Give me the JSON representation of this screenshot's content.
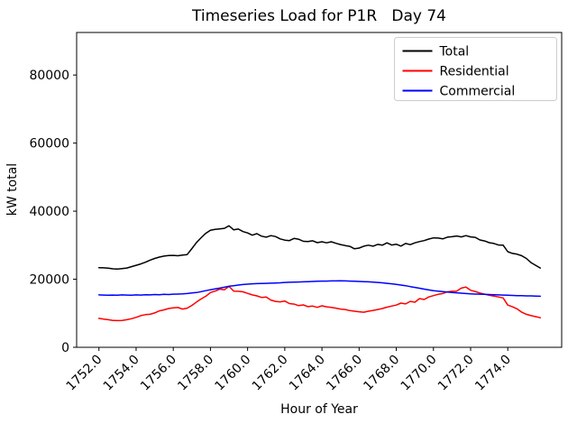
{
  "window": {
    "background": "#ffffff"
  },
  "chart_data": {
    "type": "line",
    "title": "Timeseries Load for P1R   Day 74",
    "xlabel": "Hour of Year",
    "ylabel": "kW total",
    "xlim": [
      1750.8,
      1776.9
    ],
    "ylim": [
      0,
      92500
    ],
    "grid": false,
    "legend_position": "upper right",
    "x_ticks": [
      1752,
      1754,
      1756,
      1758,
      1760,
      1762,
      1764,
      1766,
      1768,
      1770,
      1772,
      1774
    ],
    "x_tick_labels": [
      "1752.0",
      "1754.0",
      "1756.0",
      "1758.0",
      "1760.0",
      "1762.0",
      "1764.0",
      "1766.0",
      "1768.0",
      "1770.0",
      "1772.0",
      "1774.0"
    ],
    "x_tick_rotation_deg": 45,
    "y_ticks": [
      0,
      20000,
      40000,
      60000,
      80000
    ],
    "y_tick_labels": [
      "0",
      "20000",
      "40000",
      "60000",
      "80000"
    ],
    "x_start": 1752.0,
    "x_step": 0.25,
    "x_unit": "hour of year (15-min samples)",
    "series": [
      {
        "name": "Total",
        "color": "#000000",
        "values": [
          23400,
          23350,
          23250,
          23050,
          23000,
          23150,
          23300,
          23700,
          24100,
          24500,
          25000,
          25600,
          26100,
          26500,
          26800,
          26950,
          27000,
          26900,
          27100,
          27250,
          29000,
          30800,
          32200,
          33500,
          34400,
          34650,
          34800,
          34950,
          35700,
          34500,
          34750,
          34000,
          33600,
          32950,
          33400,
          32650,
          32350,
          32800,
          32550,
          31850,
          31500,
          31350,
          32000,
          31750,
          31150,
          31050,
          31300,
          30750,
          31000,
          30700,
          31000,
          30550,
          30200,
          29900,
          29650,
          28950,
          29150,
          29700,
          30000,
          29700,
          30250,
          30000,
          30700,
          30050,
          30300,
          29750,
          30500,
          30150,
          30700,
          31050,
          31350,
          31800,
          32150,
          32100,
          31850,
          32350,
          32500,
          32700,
          32450,
          32800,
          32450,
          32300,
          31550,
          31250,
          30750,
          30500,
          30050,
          30000,
          28100,
          27600,
          27350,
          26900,
          26100,
          24900,
          24100,
          23300
        ]
      },
      {
        "name": "Residential",
        "color": "#ff0000",
        "values": [
          8500,
          8300,
          8100,
          7900,
          7850,
          7900,
          8100,
          8400,
          8800,
          9300,
          9600,
          9700,
          10100,
          10700,
          11000,
          11400,
          11600,
          11700,
          11250,
          11500,
          12300,
          13300,
          14200,
          15000,
          16100,
          16500,
          17100,
          16900,
          17900,
          16500,
          16450,
          16300,
          15850,
          15400,
          15100,
          14650,
          14800,
          13900,
          13500,
          13350,
          13600,
          12850,
          12700,
          12250,
          12450,
          11950,
          12100,
          11750,
          12200,
          11900,
          11750,
          11500,
          11250,
          11100,
          10800,
          10600,
          10450,
          10300,
          10600,
          10850,
          11100,
          11400,
          11800,
          12100,
          12400,
          13000,
          12750,
          13500,
          13250,
          14300,
          14050,
          14800,
          15200,
          15550,
          15800,
          16300,
          16450,
          16500,
          17400,
          17700,
          16750,
          16400,
          15950,
          15600,
          15300,
          15050,
          14800,
          14500,
          12400,
          11900,
          11300,
          10300,
          9700,
          9300,
          9000,
          8700
        ]
      },
      {
        "name": "Commercial",
        "color": "#0000ff",
        "values": [
          15400,
          15350,
          15300,
          15350,
          15300,
          15400,
          15350,
          15300,
          15400,
          15350,
          15450,
          15400,
          15500,
          15450,
          15550,
          15500,
          15600,
          15650,
          15700,
          15800,
          15950,
          16100,
          16350,
          16650,
          16900,
          17150,
          17400,
          17650,
          17950,
          18100,
          18300,
          18450,
          18550,
          18650,
          18700,
          18750,
          18800,
          18850,
          18900,
          18950,
          19050,
          19100,
          19150,
          19200,
          19250,
          19300,
          19350,
          19400,
          19450,
          19450,
          19500,
          19500,
          19550,
          19500,
          19450,
          19400,
          19350,
          19300,
          19250,
          19150,
          19050,
          18950,
          18800,
          18650,
          18500,
          18300,
          18100,
          17850,
          17600,
          17350,
          17100,
          16850,
          16650,
          16500,
          16350,
          16250,
          16100,
          16000,
          15900,
          15800,
          15700,
          15650,
          15600,
          15550,
          15500,
          15450,
          15400,
          15350,
          15300,
          15250,
          15200,
          15150,
          15100,
          15100,
          15050,
          15000
        ]
      }
    ]
  }
}
